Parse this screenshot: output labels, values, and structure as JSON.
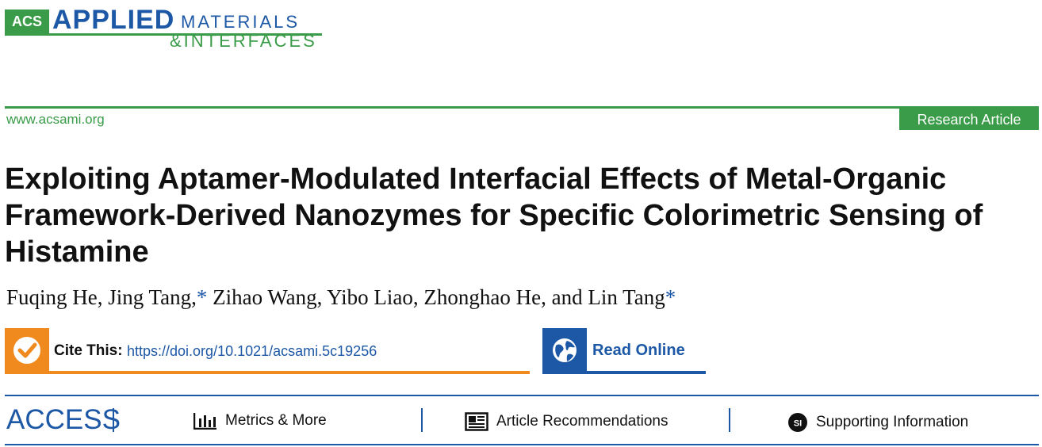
{
  "journal": {
    "acs": "ACS",
    "applied": "APPLIED",
    "materials": "MATERIALS",
    "interfaces": "&INTERFACES",
    "url": "www.acsami.org",
    "article_type": "Research Article"
  },
  "article": {
    "title": "Exploiting Aptamer-Modulated Interfacial Effects of Metal-Organic Framework-Derived Nanozymes for Specific Colorimetric Sensing of Histamine",
    "authors": [
      {
        "name": "Fuqing He",
        "sep": ", "
      },
      {
        "name": "Jing Tang,",
        "star": "*",
        "sep": " "
      },
      {
        "name": "Zihao Wang",
        "sep": ", "
      },
      {
        "name": "Yibo Liao",
        "sep": ", "
      },
      {
        "name": "Zhonghao He",
        "sep": ", and "
      },
      {
        "name": "Lin Tang",
        "star": "*",
        "sep": ""
      }
    ]
  },
  "cite": {
    "label": "Cite This:",
    "doi": "https://doi.org/10.1021/acsami.5c19256"
  },
  "read_online": {
    "label": "Read Online"
  },
  "access_bar": {
    "access": "ACCESS",
    "metrics": "Metrics & More",
    "recommendations": "Article Recommendations",
    "supporting": "Supporting Information",
    "si_badge": "SI"
  },
  "colors": {
    "green": "#3a9b48",
    "blue": "#1d58a6",
    "orange": "#f08a1f"
  }
}
